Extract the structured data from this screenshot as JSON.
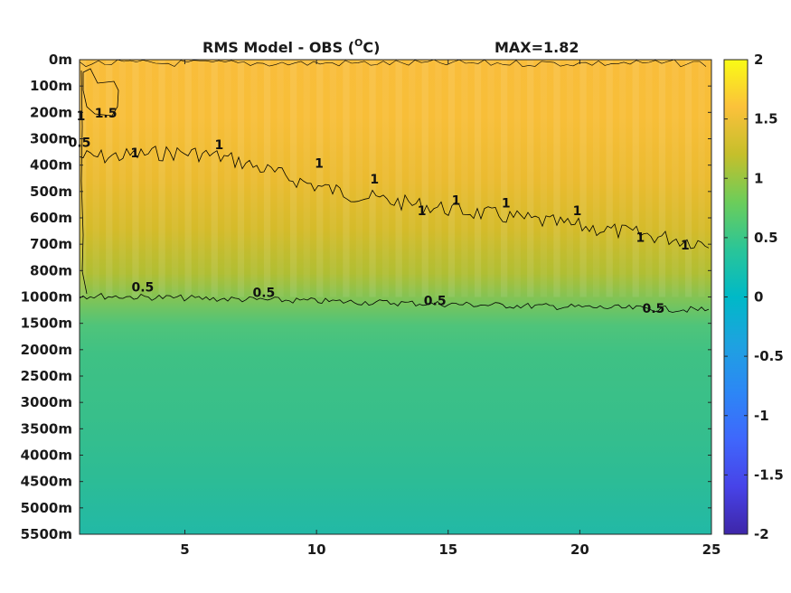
{
  "chart_data": {
    "type": "heatmap",
    "title": "RMS Model - OBS (",
    "title_unit": "O",
    "title_unit_tail": "C)",
    "max_label": "MAX=1.82",
    "xlabel": "",
    "ylabel": "",
    "x_range": [
      1,
      25
    ],
    "x_ticks": [
      "5",
      "10",
      "15",
      "20",
      "25"
    ],
    "x_tick_values": [
      5,
      10,
      15,
      20,
      25
    ],
    "y_ticks": [
      "0m",
      "100m",
      "200m",
      "300m",
      "400m",
      "500m",
      "600m",
      "700m",
      "800m",
      "1000m",
      "1500m",
      "2000m",
      "2500m",
      "3000m",
      "3500m",
      "4000m",
      "4500m",
      "5000m",
      "5500m"
    ],
    "colorbar": {
      "ticks": [
        "2",
        "1.5",
        "1",
        "0.5",
        "0",
        "-0.5",
        "-1",
        "-1.5",
        "-2"
      ],
      "range": [
        -2,
        2
      ],
      "colormap": "parula"
    },
    "contours": [
      {
        "level": "1.5",
        "description_depth": "near 100-200m, x 1-3"
      },
      {
        "level": "1",
        "depth_start": "400m",
        "depth_end": "700m"
      },
      {
        "level": "0.5",
        "depth_start": "1000m",
        "depth_end": "1000m"
      }
    ],
    "contour_labels": [
      {
        "text": "1.5",
        "x": 2.0,
        "depth_index": 2.2
      },
      {
        "text": "1",
        "x": 1.05,
        "depth_index": 2.3
      },
      {
        "text": "0.5",
        "x": 1.0,
        "depth_index": 3.3
      },
      {
        "text": "1",
        "x": 3.1,
        "depth_index": 3.7
      },
      {
        "text": "1",
        "x": 6.3,
        "depth_index": 3.4
      },
      {
        "text": "1",
        "x": 10.1,
        "depth_index": 4.1
      },
      {
        "text": "1",
        "x": 12.2,
        "depth_index": 4.7
      },
      {
        "text": "1",
        "x": 14.0,
        "depth_index": 5.9
      },
      {
        "text": "1",
        "x": 15.3,
        "depth_index": 5.5
      },
      {
        "text": "1",
        "x": 17.2,
        "depth_index": 5.6
      },
      {
        "text": "1",
        "x": 19.9,
        "depth_index": 5.9
      },
      {
        "text": "1",
        "x": 22.3,
        "depth_index": 6.9
      },
      {
        "text": "1",
        "x": 24.0,
        "depth_index": 7.2
      },
      {
        "text": "0.5",
        "x": 3.4,
        "depth_index": 8.8
      },
      {
        "text": "0.5",
        "x": 8.0,
        "depth_index": 9.0
      },
      {
        "text": "0.5",
        "x": 14.5,
        "depth_index": 9.3
      },
      {
        "text": "0.5",
        "x": 22.8,
        "depth_index": 9.6
      }
    ]
  }
}
